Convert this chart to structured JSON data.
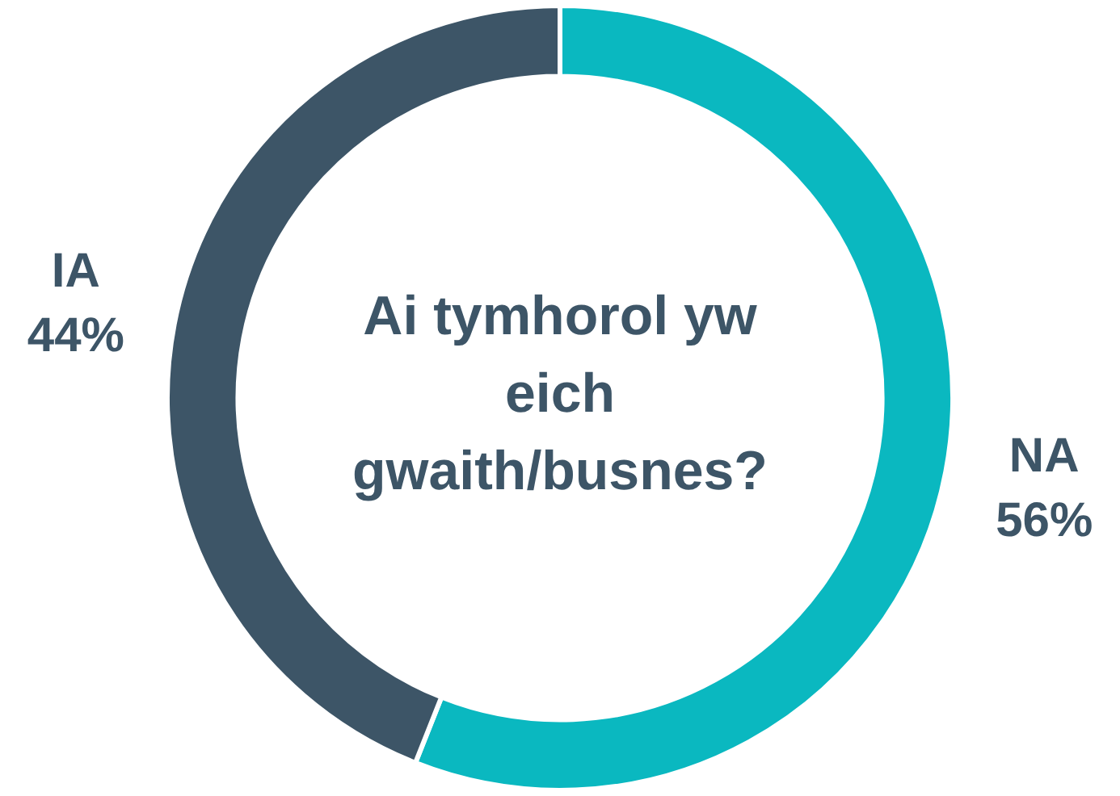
{
  "chart_data": {
    "type": "donut",
    "title": "Ai tymhorol yw eich gwaith/busnes?",
    "categories": [
      "NA",
      "IA"
    ],
    "values": [
      56,
      44
    ],
    "value_labels": [
      "56%",
      "44%"
    ],
    "colors": [
      "#0ab8c0",
      "#3d5567"
    ],
    "legend": false
  }
}
